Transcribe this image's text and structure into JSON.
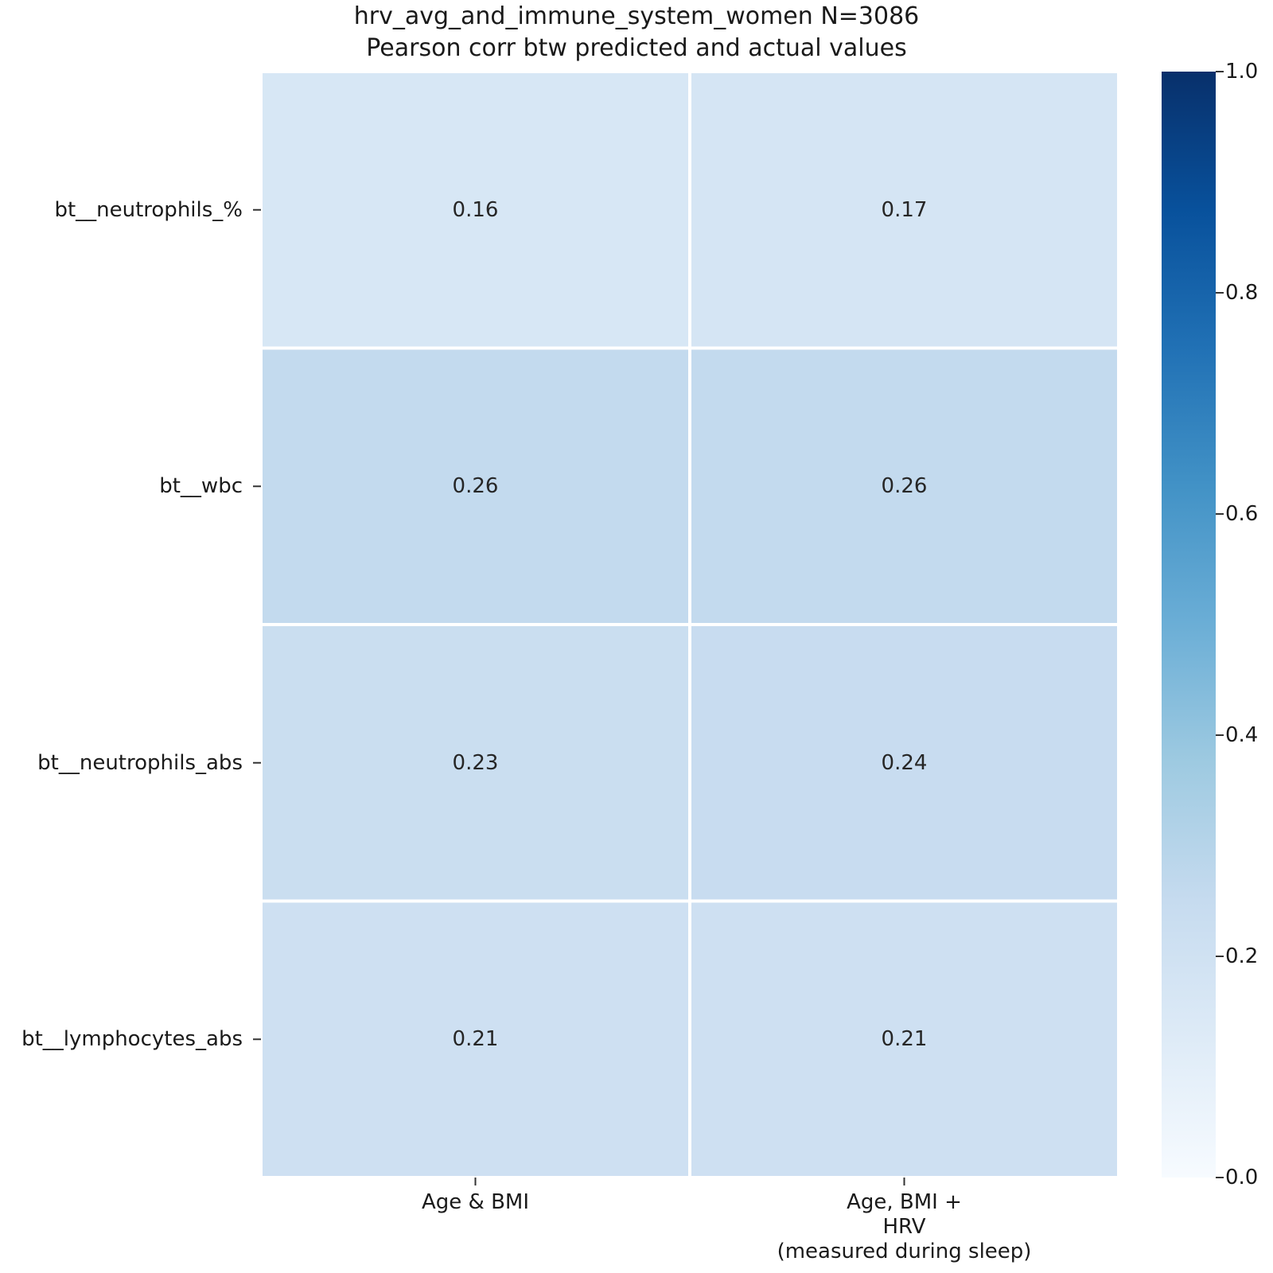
{
  "chart_data": {
    "type": "heatmap",
    "title": [
      "hrv_avg_and_immune_system_women N=3086",
      "Pearson corr btw predicted and actual values"
    ],
    "rows": [
      "bt__neutrophils_%",
      "bt__wbc",
      "bt__neutrophils_abs",
      "bt__lymphocytes_abs"
    ],
    "columns": [
      [
        "Age & BMI"
      ],
      [
        "Age, BMI +",
        "HRV",
        "(measured during sleep)"
      ]
    ],
    "values": [
      [
        0.16,
        0.17
      ],
      [
        0.26,
        0.26
      ],
      [
        0.23,
        0.24
      ],
      [
        0.21,
        0.21
      ]
    ],
    "value_labels": [
      [
        "0.16",
        "0.17"
      ],
      [
        "0.26",
        "0.26"
      ],
      [
        "0.23",
        "0.24"
      ],
      [
        "0.21",
        "0.21"
      ]
    ],
    "colormap": "Blues",
    "colorbar": {
      "vmin": 0.0,
      "vmax": 1.0,
      "ticks": [
        0.0,
        0.2,
        0.4,
        0.6,
        0.8,
        1.0
      ],
      "tick_labels": [
        "0.0",
        "0.2",
        "0.4",
        "0.6",
        "0.8",
        "1.0"
      ]
    }
  }
}
